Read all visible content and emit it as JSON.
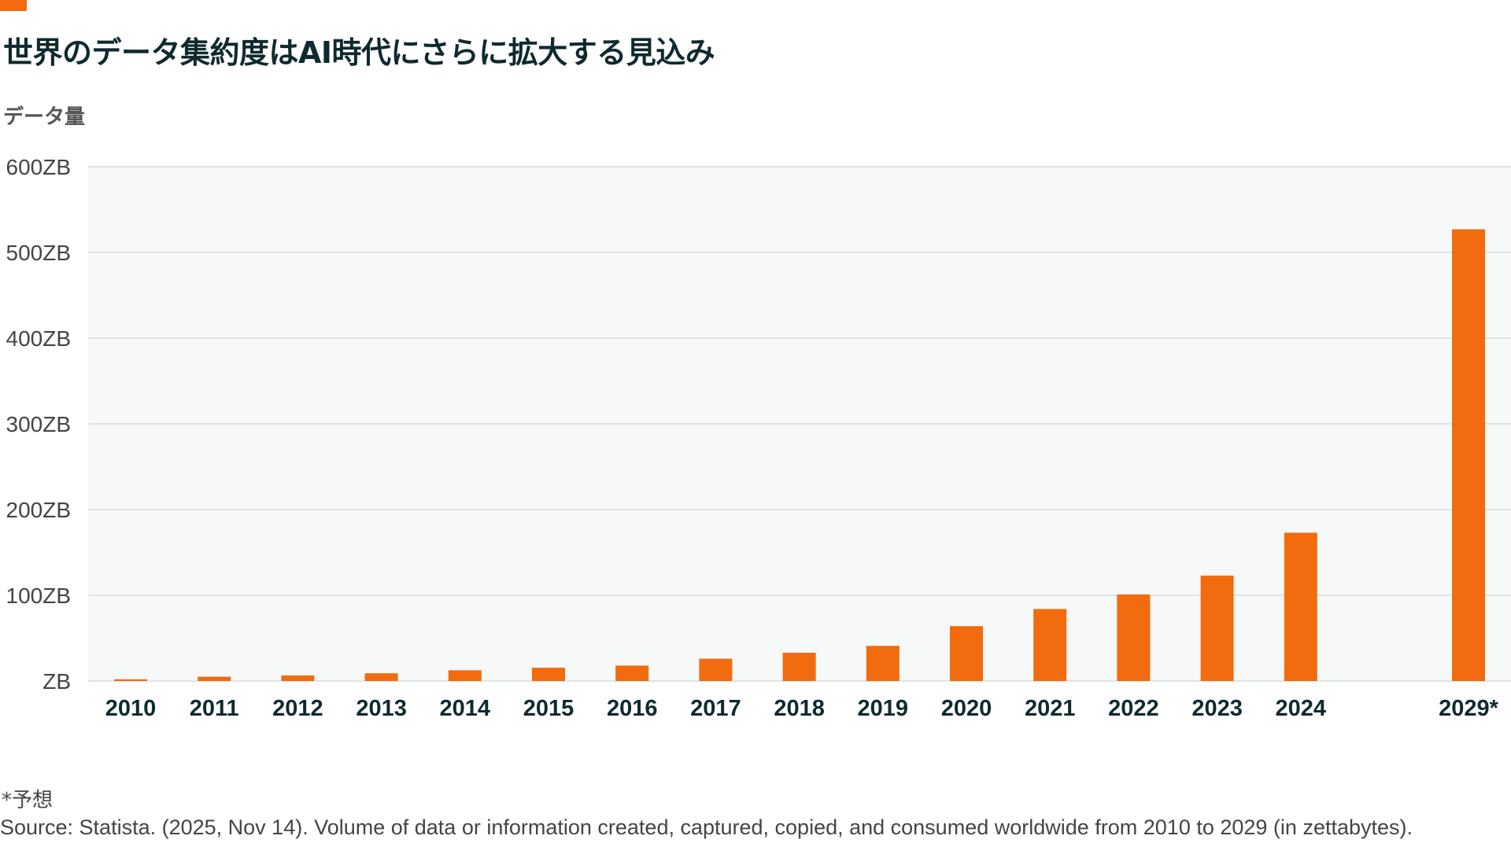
{
  "title": "世界のデータ集約度はAI時代にさらに拡大する見込み",
  "y_axis_title": "データ量",
  "footnote": "*予想",
  "source": "Source: Statista. (2025, Nov 14). Volume of data or information created, captured, copied, and consumed worldwide from 2010 to 2029 (in zettabytes).",
  "colors": {
    "accent": "#f26b0f",
    "bar": "#f26b0f",
    "plot_bg": "#f7f8f8",
    "grid": "#d9dcdc",
    "title": "#0f2a2e"
  },
  "chart_data": {
    "type": "bar",
    "title": "世界のデータ集約度はAI時代にさらに拡大する見込み",
    "xlabel": "",
    "ylabel": "データ量",
    "ylim": [
      0,
      600
    ],
    "y_ticks": [
      0,
      100,
      200,
      300,
      400,
      500,
      600
    ],
    "y_tick_labels": [
      "ZB",
      "100ZB",
      "200ZB",
      "300ZB",
      "400ZB",
      "500ZB",
      "600ZB"
    ],
    "categories": [
      "2010",
      "2011",
      "2012",
      "2013",
      "2014",
      "2015",
      "2016",
      "2017",
      "2018",
      "2019",
      "2020",
      "2021",
      "2022",
      "2023",
      "2024",
      "2029*"
    ],
    "values": [
      2,
      5,
      6.5,
      9,
      12.5,
      15.5,
      18,
      26,
      33,
      41,
      64,
      84,
      101,
      123,
      173,
      527
    ],
    "grid": true,
    "legend": "none"
  }
}
